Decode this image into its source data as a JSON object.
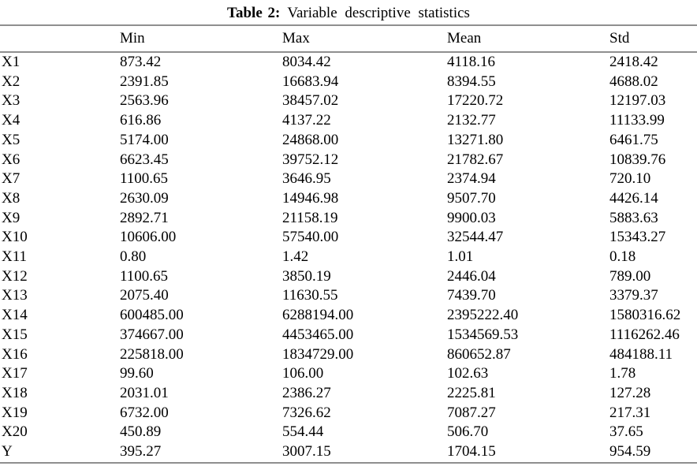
{
  "title": {
    "label": "Table 2:",
    "text": "Variable descriptive statistics"
  },
  "table": {
    "columns": [
      "",
      "Min",
      "Max",
      "Mean",
      "Std"
    ],
    "rows": [
      {
        "label": "X1",
        "min": "873.42",
        "max": "8034.42",
        "mean": "4118.16",
        "std": "2418.42"
      },
      {
        "label": "X2",
        "min": "2391.85",
        "max": "16683.94",
        "mean": "8394.55",
        "std": "4688.02"
      },
      {
        "label": "X3",
        "min": "2563.96",
        "max": "38457.02",
        "mean": "17220.72",
        "std": "12197.03"
      },
      {
        "label": "X4",
        "min": "616.86",
        "max": "4137.22",
        "mean": "2132.77",
        "std": "11133.99"
      },
      {
        "label": "X5",
        "min": "5174.00",
        "max": "24868.00",
        "mean": "13271.80",
        "std": "6461.75"
      },
      {
        "label": "X6",
        "min": "6623.45",
        "max": "39752.12",
        "mean": "21782.67",
        "std": "10839.76"
      },
      {
        "label": "X7",
        "min": "1100.65",
        "max": "3646.95",
        "mean": "2374.94",
        "std": "720.10"
      },
      {
        "label": "X8",
        "min": "2630.09",
        "max": "14946.98",
        "mean": "9507.70",
        "std": "4426.14"
      },
      {
        "label": "X9",
        "min": "2892.71",
        "max": "21158.19",
        "mean": "9900.03",
        "std": "5883.63"
      },
      {
        "label": "X10",
        "min": "10606.00",
        "max": "57540.00",
        "mean": "32544.47",
        "std": "15343.27"
      },
      {
        "label": "X11",
        "min": "0.80",
        "max": "1.42",
        "mean": "1.01",
        "std": "0.18"
      },
      {
        "label": "X12",
        "min": "1100.65",
        "max": "3850.19",
        "mean": "2446.04",
        "std": "789.00"
      },
      {
        "label": "X13",
        "min": "2075.40",
        "max": "11630.55",
        "mean": "7439.70",
        "std": "3379.37"
      },
      {
        "label": "X14",
        "min": "600485.00",
        "max": "6288194.00",
        "mean": "2395222.40",
        "std": "1580316.62"
      },
      {
        "label": "X15",
        "min": "374667.00",
        "max": "4453465.00",
        "mean": "1534569.53",
        "std": "1116262.46"
      },
      {
        "label": "X16",
        "min": "225818.00",
        "max": "1834729.00",
        "mean": "860652.87",
        "std": "484188.11"
      },
      {
        "label": "X17",
        "min": "99.60",
        "max": "106.00",
        "mean": "102.63",
        "std": "1.78"
      },
      {
        "label": "X18",
        "min": "2031.01",
        "max": "2386.27",
        "mean": "2225.81",
        "std": "127.28"
      },
      {
        "label": "X19",
        "min": "6732.00",
        "max": "7326.62",
        "mean": "7087.27",
        "std": "217.31"
      },
      {
        "label": "X20",
        "min": "450.89",
        "max": "554.44",
        "mean": "506.70",
        "std": "37.65"
      },
      {
        "label": "Y",
        "min": "395.27",
        "max": "3007.15",
        "mean": "1704.15",
        "std": "954.59"
      }
    ]
  },
  "colors": {
    "background": "#ffffff",
    "text": "#000000",
    "rule": "#8f8f8f"
  }
}
